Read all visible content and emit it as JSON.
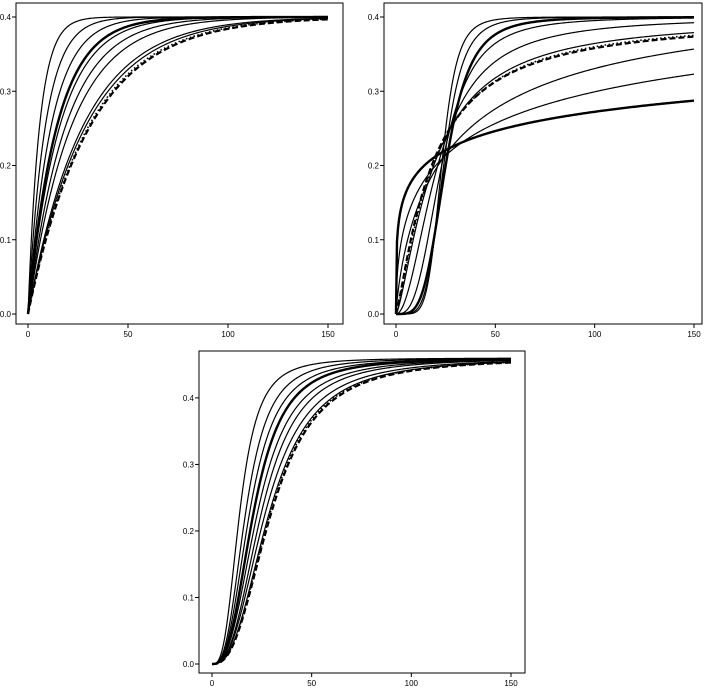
{
  "chart_data": [
    {
      "type": "line",
      "panel": "top-left",
      "xlim": [
        0,
        150
      ],
      "ylim": [
        0,
        0.4
      ],
      "x_ticks": [
        0,
        50,
        100,
        150
      ],
      "y_ticks": [
        0.0,
        0.1,
        0.2,
        0.3,
        0.4
      ],
      "x_tick_labels": [
        "0",
        "50",
        "100",
        "150"
      ],
      "y_tick_labels": [
        "0.0",
        "0.1",
        "0.2",
        "0.3",
        "0.4"
      ],
      "grid": false,
      "curve_model": "saturating exponential",
      "series": [
        {
          "style": "solid",
          "width": 1.2,
          "plateau": 0.4,
          "t50": 4
        },
        {
          "style": "solid",
          "width": 1.2,
          "plateau": 0.4,
          "t50": 6
        },
        {
          "style": "solid",
          "width": 1.2,
          "plateau": 0.4,
          "t50": 8
        },
        {
          "style": "solid",
          "width": 2.4,
          "plateau": 0.4,
          "t50": 10
        },
        {
          "style": "solid",
          "width": 1.2,
          "plateau": 0.4,
          "t50": 11
        },
        {
          "style": "solid",
          "width": 1.2,
          "plateau": 0.4,
          "t50": 13
        },
        {
          "style": "solid",
          "width": 1.2,
          "plateau": 0.4,
          "t50": 15
        },
        {
          "style": "solid",
          "width": 1.2,
          "plateau": 0.4,
          "t50": 19
        },
        {
          "style": "solid",
          "width": 1.2,
          "plateau": 0.4,
          "t50": 20
        },
        {
          "style": "dotted",
          "width": 1.6,
          "plateau": 0.4,
          "t50": 21
        },
        {
          "style": "dashed",
          "width": 2.2,
          "plateau": 0.4,
          "t50": 21.5
        }
      ]
    },
    {
      "type": "line",
      "panel": "top-right",
      "xlim": [
        0,
        150
      ],
      "ylim": [
        0,
        0.4
      ],
      "x_ticks": [
        0,
        50,
        100,
        150
      ],
      "y_ticks": [
        0.0,
        0.1,
        0.2,
        0.3,
        0.4
      ],
      "x_tick_labels": [
        "0",
        "50",
        "100",
        "150"
      ],
      "y_tick_labels": [
        "0.0",
        "0.1",
        "0.2",
        "0.3",
        "0.4"
      ],
      "grid": false,
      "curve_model": "hill (crossing near x=27, y=0.24)",
      "series": [
        {
          "style": "solid",
          "width": 1.2,
          "plateau": 0.4,
          "k": 23,
          "n": 6
        },
        {
          "style": "solid",
          "width": 1.2,
          "plateau": 0.4,
          "k": 24,
          "n": 5
        },
        {
          "style": "solid",
          "width": 2.4,
          "plateau": 0.4,
          "k": 25,
          "n": 4
        },
        {
          "style": "solid",
          "width": 1.2,
          "plateau": 0.4,
          "k": 23,
          "n": 3
        },
        {
          "style": "solid",
          "width": 1.2,
          "plateau": 0.4,
          "k": 21,
          "n": 2
        },
        {
          "style": "solid",
          "width": 1.2,
          "plateau": 0.4,
          "k": 19,
          "n": 1.4
        },
        {
          "style": "dotted",
          "width": 1.6,
          "plateau": 0.4,
          "k": 18.5,
          "n": 1.3
        },
        {
          "style": "dashed",
          "width": 2.2,
          "plateau": 0.4,
          "k": 18,
          "n": 1.25
        },
        {
          "style": "solid",
          "width": 1.2,
          "plateau": 0.45,
          "k": 28,
          "n": 0.8
        },
        {
          "style": "solid",
          "width": 1.2,
          "plateau": 0.5,
          "k": 45,
          "n": 0.5
        },
        {
          "style": "solid",
          "width": 2.4,
          "plateau": 0.5,
          "k": 55,
          "n": 0.3
        }
      ]
    },
    {
      "type": "line",
      "panel": "bottom",
      "xlim": [
        0,
        150
      ],
      "ylim": [
        0,
        0.46
      ],
      "x_ticks": [
        0,
        50,
        100,
        150
      ],
      "y_ticks": [
        0.0,
        0.1,
        0.2,
        0.3,
        0.4
      ],
      "x_tick_labels": [
        "0",
        "50",
        "100",
        "150"
      ],
      "y_tick_labels": [
        "0.0",
        "0.1",
        "0.2",
        "0.3",
        "0.4"
      ],
      "grid": false,
      "curve_model": "sigmoidal (hill)",
      "series": [
        {
          "style": "solid",
          "width": 1.2,
          "plateau": 0.46,
          "k": 14,
          "n": 3.0
        },
        {
          "style": "solid",
          "width": 1.2,
          "plateau": 0.46,
          "k": 17,
          "n": 2.9
        },
        {
          "style": "solid",
          "width": 1.2,
          "plateau": 0.46,
          "k": 19,
          "n": 2.8
        },
        {
          "style": "solid",
          "width": 2.4,
          "plateau": 0.46,
          "k": 21,
          "n": 2.8
        },
        {
          "style": "solid",
          "width": 1.2,
          "plateau": 0.46,
          "k": 23,
          "n": 2.7
        },
        {
          "style": "solid",
          "width": 1.2,
          "plateau": 0.46,
          "k": 25,
          "n": 2.7
        },
        {
          "style": "solid",
          "width": 1.2,
          "plateau": 0.46,
          "k": 27,
          "n": 2.6
        },
        {
          "style": "solid",
          "width": 1.2,
          "plateau": 0.46,
          "k": 29,
          "n": 2.6
        },
        {
          "style": "dotted",
          "width": 1.6,
          "plateau": 0.46,
          "k": 29.5,
          "n": 2.6
        },
        {
          "style": "dashed",
          "width": 2.2,
          "plateau": 0.46,
          "k": 30,
          "n": 2.6
        }
      ]
    }
  ]
}
